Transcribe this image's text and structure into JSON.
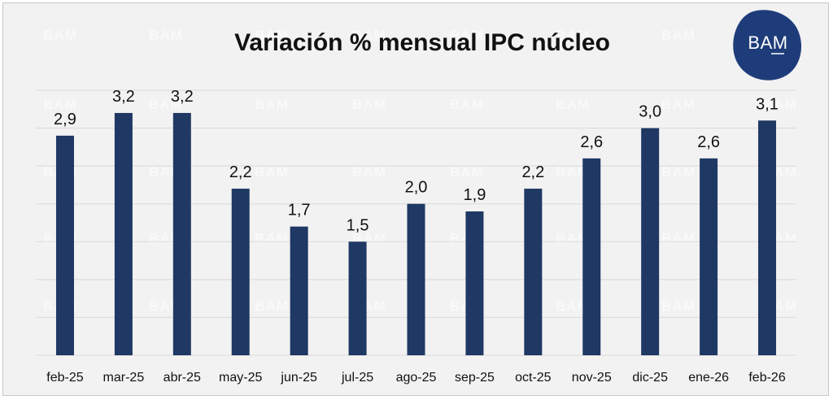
{
  "watermark_text": "BAM",
  "logo": {
    "text": "BAM",
    "color": "#1f3c7a"
  },
  "colors": {
    "bar": "#1f3864",
    "background": "#f2f2f2",
    "grid": "#d9d9d9"
  },
  "chart_data": {
    "type": "bar",
    "title": "Variación % mensual IPC núcleo",
    "xlabel": "",
    "ylabel": "",
    "ylim": [
      0,
      3.5
    ],
    "grid": true,
    "categories": [
      "feb-25",
      "mar-25",
      "abr-25",
      "may-25",
      "jun-25",
      "jul-25",
      "ago-25",
      "sep-25",
      "oct-25",
      "nov-25",
      "dic-25",
      "ene-26",
      "feb-26"
    ],
    "values": [
      2.9,
      3.2,
      3.2,
      2.2,
      1.7,
      1.5,
      2.0,
      1.9,
      2.2,
      2.6,
      3.0,
      2.6,
      3.1
    ],
    "data_labels": [
      "2,9",
      "3,2",
      "3,2",
      "2,2",
      "1,7",
      "1,5",
      "2,0",
      "1,9",
      "2,2",
      "2,6",
      "3,0",
      "2,6",
      "3,1"
    ]
  }
}
